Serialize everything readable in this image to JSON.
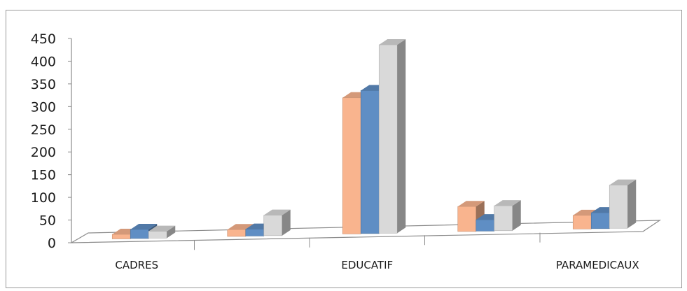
{
  "chart_data": {
    "type": "bar",
    "style": "3d-clustered-column",
    "categories": [
      "CADRES",
      "",
      "EDUCATIF",
      "",
      "PARAMEDICAUX"
    ],
    "series": [
      {
        "values": [
          10,
          15,
          300,
          55,
          30
        ],
        "color": "#F9B48E"
      },
      {
        "values": [
          20,
          15,
          315,
          25,
          35
        ],
        "color": "#5F8EC4"
      },
      {
        "values": [
          15,
          45,
          415,
          55,
          95
        ],
        "color": "#D9D9D9"
      }
    ],
    "ylim": [
      0,
      450
    ],
    "yticks": [
      "0",
      "50",
      "100",
      "150",
      "200",
      "250",
      "300",
      "350",
      "400",
      "450"
    ],
    "title": "",
    "xlabel": "",
    "ylabel": "",
    "grid": false,
    "legend": "none"
  }
}
